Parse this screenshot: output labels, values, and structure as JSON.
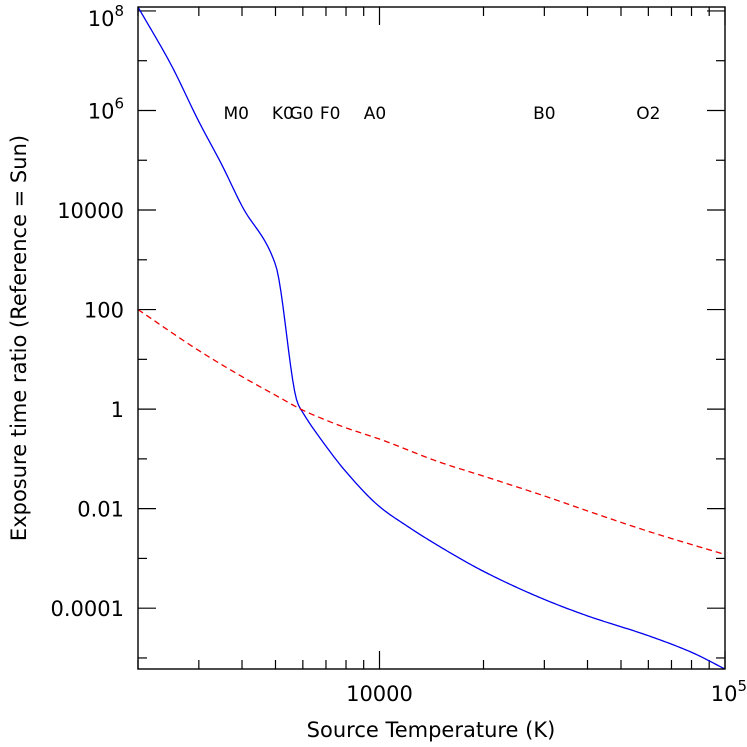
{
  "chart_data": {
    "type": "line",
    "title": "",
    "xlabel": "Source Temperature (K)",
    "ylabel": "Exposure time ratio (Reference = Sun)",
    "x_scale": "log",
    "y_scale": "log",
    "xlim": [
      2000,
      100000
    ],
    "ylim": [
      6e-06,
      120000000.0
    ],
    "x_ticks": [
      {
        "value": 10000,
        "label": "10000",
        "base": "",
        "exp": ""
      },
      {
        "value": 100000,
        "label": "",
        "base": "10",
        "exp": "5"
      }
    ],
    "y_ticks": [
      {
        "value": 100000000.0,
        "label": "",
        "base": "10",
        "exp": "8"
      },
      {
        "value": 1000000.0,
        "label": "",
        "base": "10",
        "exp": "6"
      },
      {
        "value": 10000,
        "label": "10000",
        "base": "",
        "exp": ""
      },
      {
        "value": 100,
        "label": "100",
        "base": "",
        "exp": ""
      },
      {
        "value": 1,
        "label": "1",
        "base": "",
        "exp": ""
      },
      {
        "value": 0.01,
        "label": "0.01",
        "base": "",
        "exp": ""
      },
      {
        "value": 0.0001,
        "label": "0.0001",
        "base": "",
        "exp": ""
      }
    ],
    "spectral_classes": [
      {
        "label": "M0",
        "temperature": 3850
      },
      {
        "label": "K0",
        "temperature": 5250
      },
      {
        "label": "G0",
        "temperature": 5950
      },
      {
        "label": "F0",
        "temperature": 7200
      },
      {
        "label": "A0",
        "temperature": 9700
      },
      {
        "label": "B0",
        "temperature": 30000
      },
      {
        "label": "O2",
        "temperature": 60000
      }
    ],
    "series": [
      {
        "color": "#0000ee",
        "dash": "solid",
        "x": [
          2000,
          2500,
          3000,
          3500,
          4000,
          5000,
          5800,
          6000,
          7000,
          8000,
          10000,
          12000,
          15000,
          20000,
          30000,
          40000,
          60000,
          80000,
          100000
        ],
        "y": [
          120000000.0,
          8000000.0,
          600000.0,
          80000.0,
          12000.0,
          800,
          1.3,
          0.85,
          0.18,
          0.055,
          0.011,
          0.0045,
          0.0017,
          0.00055,
          0.00015,
          7e-05,
          2.8e-05,
          1.3e-05,
          6e-06
        ]
      },
      {
        "color": "#ee0000",
        "dash": "dashed",
        "x": [
          2000,
          3000,
          4000,
          5000,
          6000,
          7000,
          8000,
          10000,
          15000,
          20000,
          30000,
          40000,
          60000,
          80000,
          100000
        ],
        "y": [
          100,
          15,
          4.5,
          1.9,
          0.95,
          0.6,
          0.42,
          0.25,
          0.085,
          0.045,
          0.018,
          0.009,
          0.0035,
          0.0019,
          0.0012
        ]
      }
    ]
  }
}
